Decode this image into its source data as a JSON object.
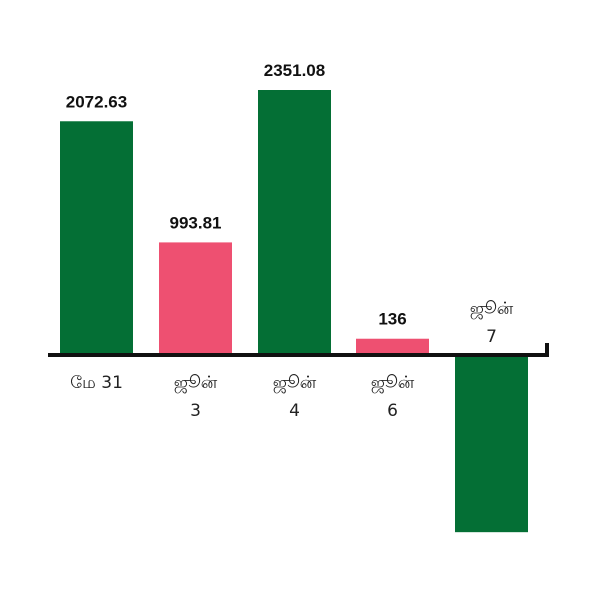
{
  "chart_data": {
    "type": "bar",
    "categories": [
      {
        "line1": "மே  31",
        "line2": ""
      },
      {
        "line1": "ஜூன்",
        "line2": "3"
      },
      {
        "line1": "ஜூன்",
        "line2": "4"
      },
      {
        "line1": "ஜூன்",
        "line2": "6"
      },
      {
        "line1": "ஜூன்",
        "line2": "7"
      }
    ],
    "values": [
      2072.63,
      993.81,
      2351.08,
      136,
      -1560
    ],
    "data_labels": [
      "2072.63",
      "993.81",
      "2351.08",
      "136",
      ""
    ],
    "colors": [
      "#046f35",
      "#ee5071",
      "#046f35",
      "#ee5071",
      "#046f35"
    ],
    "axis_color": "#111111",
    "grid": false,
    "legend": "none",
    "title": "",
    "xlabel": "",
    "ylabel": ""
  }
}
